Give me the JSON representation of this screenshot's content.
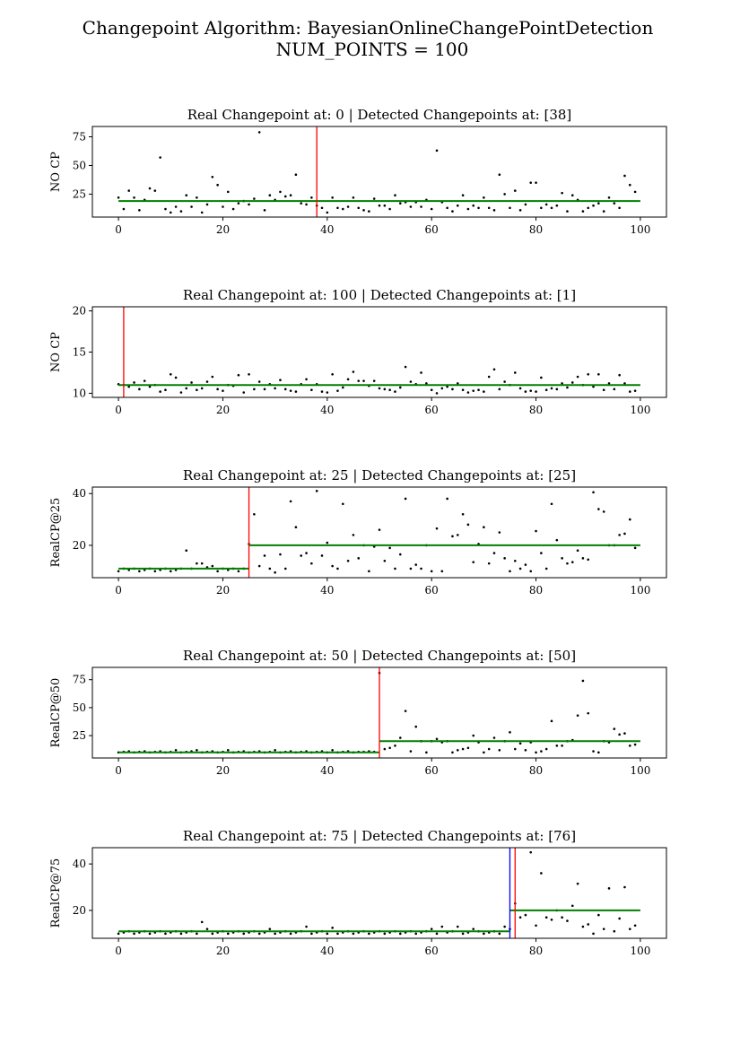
{
  "title_line1": "Changepoint Algorithm: BayesianOnlineChangePointDetection",
  "title_line2": "NUM_POINTS = 100",
  "colors": {
    "points": "#000000",
    "mean_line": "#008000",
    "detected": "#ff0000",
    "real": "#0000ff"
  },
  "chart_data": [
    {
      "type": "scatter",
      "title": "Real Changepoint at: 0 | Detected Changepoints at: [38]",
      "ylabel": "NO CP",
      "xlim": [
        -5,
        105
      ],
      "ylim": [
        5,
        84
      ],
      "xticks": [
        0,
        20,
        40,
        60,
        80,
        100
      ],
      "yticks": [
        25,
        50,
        75
      ],
      "real_changepoint": 0,
      "detected_changepoints": [
        38
      ],
      "segments": [
        {
          "x0": 0,
          "x1": 100,
          "y": 19
        }
      ],
      "y": [
        22,
        12,
        28,
        22,
        11,
        20,
        30,
        28,
        57,
        12,
        9,
        14,
        10,
        24,
        14,
        22,
        9,
        16,
        40,
        33,
        14,
        27,
        12,
        17,
        19,
        16,
        21,
        79,
        11,
        24,
        20,
        27,
        23,
        24,
        42,
        17,
        16,
        22,
        15,
        13,
        9,
        22,
        13,
        12,
        14,
        22,
        13,
        11,
        10,
        21,
        15,
        15,
        12,
        24,
        17,
        18,
        14,
        18,
        14,
        20,
        12,
        63,
        18,
        13,
        10,
        15,
        24,
        12,
        15,
        13,
        22,
        13,
        11,
        42,
        25,
        13,
        28,
        11,
        16,
        35,
        35,
        13,
        16,
        13,
        15,
        26,
        10,
        24,
        20,
        10,
        13,
        15,
        17,
        10,
        22,
        17,
        13,
        41,
        33,
        27
      ]
    },
    {
      "type": "scatter",
      "title": "Real Changepoint at: 100 | Detected Changepoints at: [1]",
      "ylabel": "NO CP",
      "xlim": [
        -5,
        105
      ],
      "ylim": [
        9.5,
        20.5
      ],
      "xticks": [
        0,
        20,
        40,
        60,
        80,
        100
      ],
      "yticks": [
        10,
        15,
        20
      ],
      "real_changepoint": 100,
      "detected_changepoints": [
        1
      ],
      "segments": [
        {
          "x0": 0,
          "x1": 100,
          "y": 11
        }
      ],
      "y": [
        11.1,
        11,
        10.8,
        11.3,
        10.5,
        11.5,
        10.8,
        11,
        10.2,
        10.4,
        12.3,
        11.9,
        10.1,
        10.6,
        11.3,
        10.4,
        10.6,
        11.4,
        12,
        10.5,
        10.3,
        11,
        10.9,
        12.2,
        10.1,
        12.3,
        10.5,
        11.4,
        10.5,
        11.1,
        10.6,
        11.6,
        10.5,
        10.3,
        10.2,
        11.1,
        11.7,
        10.4,
        11.1,
        10.2,
        10.1,
        12.3,
        10.3,
        10.7,
        11.7,
        12.6,
        11.5,
        11.5,
        10.9,
        11.5,
        10.6,
        10.5,
        10.4,
        10.2,
        10.7,
        13.2,
        11.4,
        11.1,
        12.5,
        11.2,
        10.4,
        10,
        10.6,
        10.8,
        10.5,
        11.2,
        10.4,
        10.1,
        10.3,
        10.4,
        10.2,
        12,
        12.9,
        10.5,
        11.4,
        11,
        12.5,
        10.6,
        10.2,
        10.3,
        10.2,
        11.9,
        10.4,
        10.6,
        10.5,
        11.2,
        10.7,
        11.3,
        12,
        11,
        12.3,
        10.8,
        12.3,
        10.4,
        11.2,
        10.5,
        12.2,
        11.2,
        10.2,
        10.3
      ]
    },
    {
      "type": "scatter",
      "title": "Real Changepoint at: 25 | Detected Changepoints at: [25]",
      "ylabel": "RealCP@25",
      "xlim": [
        -5,
        105
      ],
      "ylim": [
        7.5,
        42.5
      ],
      "xticks": [
        0,
        20,
        40,
        60,
        80,
        100
      ],
      "yticks": [
        20,
        40
      ],
      "real_changepoint": 25,
      "detected_changepoints": [
        25
      ],
      "segments": [
        {
          "x0": 0,
          "x1": 25,
          "y": 11
        },
        {
          "x0": 25,
          "x1": 100,
          "y": 20
        }
      ],
      "y": [
        10,
        11,
        10.5,
        11,
        10,
        10.5,
        11,
        10,
        10.5,
        11,
        10,
        10.5,
        11,
        18,
        11,
        13,
        13,
        11.5,
        12,
        10,
        11,
        10.5,
        11,
        10,
        11,
        20.5,
        32,
        12,
        16,
        11,
        9.5,
        16.5,
        11,
        37,
        27,
        16,
        17,
        13,
        41,
        16,
        21,
        12,
        11,
        36,
        14,
        24,
        15,
        20,
        10,
        19.5,
        26,
        14,
        19,
        11,
        16.5,
        38,
        11,
        12.5,
        11,
        20,
        10,
        26.5,
        10,
        38,
        23.5,
        24,
        32,
        28,
        13.5,
        20.5,
        27,
        13,
        17,
        25,
        15,
        10,
        14,
        11,
        12.5,
        10,
        25.5,
        17,
        11,
        36,
        22,
        15,
        13,
        13.5,
        18,
        15,
        14.5,
        40.5,
        34,
        33,
        20,
        20,
        24,
        24.5,
        30,
        19
      ]
    },
    {
      "type": "scatter",
      "title": "Real Changepoint at: 50 | Detected Changepoints at: [50]",
      "ylabel": "RealCP@50",
      "xlim": [
        -5,
        105
      ],
      "ylim": [
        5,
        86
      ],
      "xticks": [
        0,
        20,
        40,
        60,
        80,
        100
      ],
      "yticks": [
        25,
        50,
        75
      ],
      "real_changepoint": 50,
      "detected_changepoints": [
        50
      ],
      "segments": [
        {
          "x0": 0,
          "x1": 50,
          "y": 10
        },
        {
          "x0": 50,
          "x1": 100,
          "y": 20
        }
      ],
      "y": [
        10,
        10.5,
        11,
        10,
        10.5,
        11,
        10,
        10.5,
        11,
        10,
        10.5,
        12,
        10,
        10.5,
        11,
        12,
        10,
        10.5,
        11,
        10,
        10.5,
        12,
        10,
        10.5,
        11,
        10,
        10.5,
        11,
        10,
        10.5,
        12,
        10,
        10.5,
        11,
        10,
        10.5,
        11,
        10,
        10.5,
        11,
        10,
        12,
        10,
        10.5,
        11,
        10,
        10.5,
        10.5,
        11,
        10.5,
        81,
        13,
        14,
        16,
        23,
        47,
        11,
        33,
        20,
        10,
        20,
        22,
        19,
        20,
        10,
        12,
        13,
        14,
        25,
        19,
        10,
        13,
        23,
        12,
        20,
        28,
        13,
        18,
        12,
        19,
        10,
        11,
        13,
        38,
        16,
        16,
        20,
        21,
        43,
        74,
        45,
        11,
        10,
        20,
        19,
        31,
        26,
        27,
        16,
        17
      ]
    },
    {
      "type": "scatter",
      "title": "Real Changepoint at: 75 | Detected Changepoints at: [76]",
      "ylabel": "RealCP@75",
      "xlim": [
        -5,
        105
      ],
      "ylim": [
        8,
        47
      ],
      "xticks": [
        0,
        20,
        40,
        60,
        80,
        100
      ],
      "yticks": [
        20,
        40
      ],
      "real_changepoint": 75,
      "detected_changepoints": [
        76
      ],
      "segments": [
        {
          "x0": 0,
          "x1": 75,
          "y": 11
        },
        {
          "x0": 75,
          "x1": 100,
          "y": 20
        }
      ],
      "y": [
        10,
        10.5,
        11,
        10,
        10.5,
        11,
        10,
        10.5,
        11,
        10,
        10.5,
        11,
        10,
        10.5,
        11,
        10,
        15,
        12,
        10,
        10.5,
        11,
        10,
        10.5,
        11,
        10,
        10.5,
        11,
        10,
        10.5,
        12,
        10,
        10.5,
        11,
        10,
        10.5,
        11,
        13,
        10,
        10.5,
        11,
        10,
        12.5,
        10,
        10.5,
        11,
        10,
        10.5,
        11,
        10,
        10.5,
        11,
        10,
        10.5,
        11,
        10,
        10.5,
        11,
        10,
        10.5,
        11,
        12,
        10,
        13,
        10.5,
        11,
        13,
        10,
        10.5,
        12,
        11,
        10,
        10.5,
        11,
        10,
        13,
        12,
        23,
        17,
        18,
        45,
        13.5,
        36,
        17,
        16,
        20,
        17,
        15.5,
        22,
        31.5,
        13,
        14,
        10,
        18,
        12,
        29.5,
        11,
        16.5,
        30,
        12,
        13.5
      ]
    }
  ]
}
